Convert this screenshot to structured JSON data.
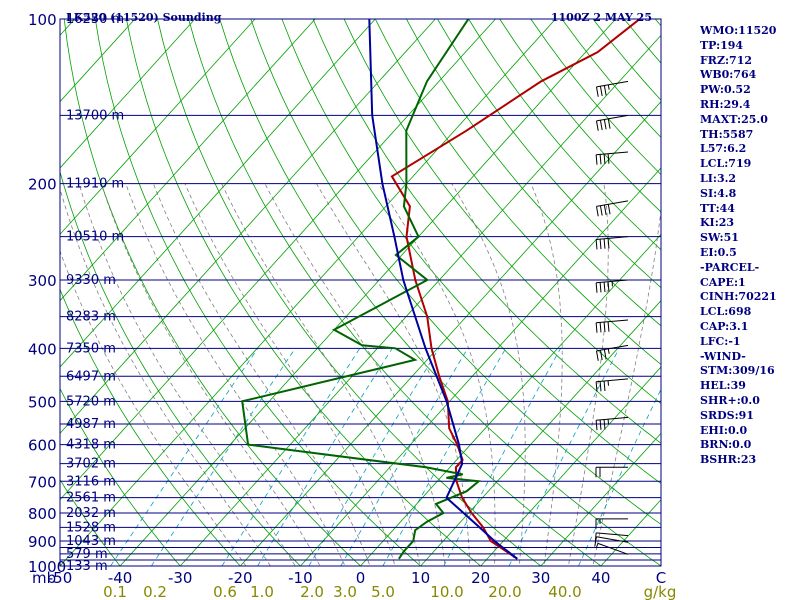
{
  "header": {
    "station": "LK520 (11520) Sounding",
    "time": "1100Z  2 MAY 25"
  },
  "colors": {
    "text": "#000080",
    "isobars": "#000080",
    "dry_adiabats": "#00a000",
    "moist_adiabats": "#808080",
    "mixing_ratio": "#00a0c0",
    "temperature": "#b00000",
    "dewpoint": "#006400",
    "parcel": "#0000a0",
    "mixing_labels": "#888800"
  },
  "axes": {
    "mb_label": "mb",
    "pressure_labels": [
      "100",
      "200",
      "300",
      "400",
      "500",
      "600",
      "700",
      "800",
      "900",
      "1000"
    ],
    "height_labels": [
      "16250 m",
      "13700 m",
      "11910 m",
      "10510 m",
      "9330 m",
      "8283 m",
      "7350 m",
      "6497 m",
      "5720 m",
      "4987 m",
      "4318 m",
      "3702 m",
      "3116 m",
      "2561 m",
      "2032 m",
      "1528 m",
      "1043 m",
      "579 m",
      "133 m"
    ],
    "temperature_labels": [
      "-50",
      "-40",
      "-30",
      "-20",
      "-10",
      "0",
      "10",
      "20",
      "30",
      "40",
      "C"
    ],
    "mixing_labels": [
      "0.1",
      "0.2",
      "0.6",
      "1.0",
      "2.0",
      "3.0",
      "5.0",
      "10.0",
      "20.0",
      "40.0",
      "g/kg"
    ]
  },
  "indices": [
    "WMO:11520",
    "TP:194",
    "FRZ:712",
    "WB0:764",
    "PW:0.52",
    "RH:29.4",
    "MAXT:25.0",
    "TH:5587",
    "L57:6.2",
    "LCL:719",
    "LI:3.2",
    "SI:4.8",
    "TT:44",
    "KI:23",
    "SW:51",
    "EI:0.5",
    "-PARCEL-",
    "CAPE:1",
    "CINH:70221",
    "LCL:698",
    "CAP:3.1",
    "LFC:-1",
    "-WIND-",
    "STM:309/16",
    "HEL:39",
    "SHR+:0.0",
    "SRDS:91",
    "EHI:0.0",
    "BRN:0.0",
    "BSHR:23"
  ],
  "chart_data": {
    "type": "line",
    "title": "LK520 (11520) Sounding",
    "subtitle": "1100Z  2 MAY 25",
    "xlabel": "C",
    "ylabel": "mb",
    "x_scale": "skew-T (temperature skewed with height)",
    "y_scale": "log pressure",
    "ylim": [
      1000,
      100
    ],
    "xlim": [
      -50,
      50
    ],
    "grid": true,
    "series": [
      {
        "name": "temperature",
        "points": [
          [
            970,
            25.0
          ],
          [
            900,
            17.9
          ],
          [
            850,
            14.6
          ],
          [
            800,
            10.5
          ],
          [
            750,
            6.6
          ],
          [
            700,
            3.2
          ],
          [
            660,
            1.0
          ],
          [
            640,
            1.0
          ],
          [
            600,
            -2.2
          ],
          [
            560,
            -6.0
          ],
          [
            500,
            -10.3
          ],
          [
            450,
            -15.5
          ],
          [
            400,
            -21.0
          ],
          [
            350,
            -26.5
          ],
          [
            300,
            -34.0
          ],
          [
            250,
            -42.0
          ],
          [
            220,
            -46.0
          ],
          [
            194,
            -53.5
          ],
          [
            160,
            -48.0
          ],
          [
            130,
            -43.0
          ],
          [
            115,
            -38.0
          ],
          [
            100,
            -36.0
          ]
        ]
      },
      {
        "name": "dewpoint",
        "points": [
          [
            970,
            5.3
          ],
          [
            940,
            5.0
          ],
          [
            900,
            5.0
          ],
          [
            860,
            3.7
          ],
          [
            830,
            4.4
          ],
          [
            800,
            5.8
          ],
          [
            770,
            3.2
          ],
          [
            730,
            6.4
          ],
          [
            700,
            6.9
          ],
          [
            690,
            1.0
          ],
          [
            680,
            3.2
          ],
          [
            660,
            -4.0
          ],
          [
            600,
            -37.0
          ],
          [
            500,
            -44.5
          ],
          [
            420,
            -22.0
          ],
          [
            400,
            -27.0
          ],
          [
            395,
            -33.0
          ],
          [
            370,
            -40.0
          ],
          [
            300,
            -32.0
          ],
          [
            270,
            -41.0
          ],
          [
            250,
            -40.0
          ],
          [
            220,
            -47.0
          ],
          [
            200,
            -50.0
          ],
          [
            160,
            -58.0
          ],
          [
            130,
            -62.0
          ],
          [
            100,
            -64.5
          ]
        ]
      },
      {
        "name": "parcel",
        "points": [
          [
            970,
            25.0
          ],
          [
            900,
            18.5
          ],
          [
            850,
            14.0
          ],
          [
            750,
            4.0
          ],
          [
            700,
            2.8
          ],
          [
            650,
            1.5
          ],
          [
            600,
            -1.9
          ],
          [
            500,
            -10.5
          ],
          [
            400,
            -22.0
          ],
          [
            300,
            -36.0
          ],
          [
            250,
            -44.0
          ],
          [
            200,
            -54.0
          ],
          [
            150,
            -66.0
          ],
          [
            100,
            -81.0
          ]
        ]
      }
    ],
    "wind_barbs": [
      {
        "p": 952,
        "dir": 290,
        "spd": 5
      },
      {
        "p": 905,
        "dir": 280,
        "spd": 10
      },
      {
        "p": 880,
        "dir": 275,
        "spd": 10
      },
      {
        "p": 820,
        "dir": 270,
        "spd": 15
      },
      {
        "p": 660,
        "dir": 270,
        "spd": 20
      },
      {
        "p": 535,
        "dir": 265,
        "spd": 35
      },
      {
        "p": 455,
        "dir": 265,
        "spd": 35
      },
      {
        "p": 395,
        "dir": 260,
        "spd": 35
      },
      {
        "p": 355,
        "dir": 265,
        "spd": 40
      },
      {
        "p": 300,
        "dir": 265,
        "spd": 45
      },
      {
        "p": 250,
        "dir": 265,
        "spd": 40
      },
      {
        "p": 215,
        "dir": 260,
        "spd": 40
      },
      {
        "p": 175,
        "dir": 265,
        "spd": 40
      },
      {
        "p": 150,
        "dir": 260,
        "spd": 40
      },
      {
        "p": 130,
        "dir": 260,
        "spd": 35
      }
    ]
  }
}
